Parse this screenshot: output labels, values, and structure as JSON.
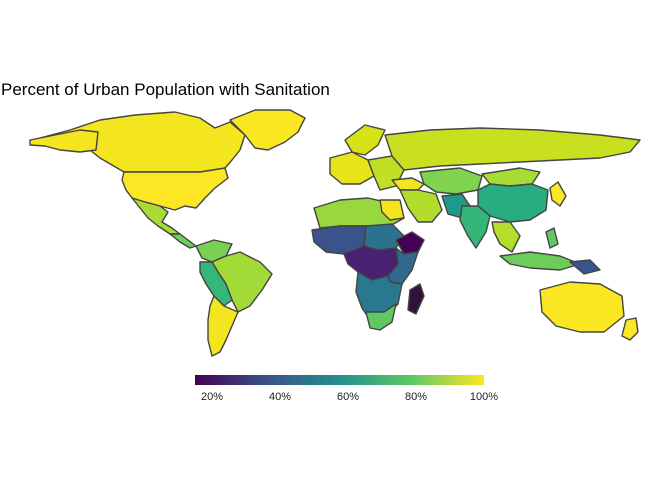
{
  "title": "Percent of Urban Population with Sanitation",
  "legend": {
    "type": "continuous colorbar",
    "palette": [
      "#440154",
      "#3b528b",
      "#21908c",
      "#5dc963",
      "#fde725"
    ],
    "min": 15,
    "max": 100,
    "ticks": [
      {
        "value": 20,
        "label": "20%"
      },
      {
        "value": 40,
        "label": "40%"
      },
      {
        "value": 60,
        "label": "60%"
      },
      {
        "value": 80,
        "label": "80%"
      },
      {
        "value": 100,
        "label": "100%"
      }
    ]
  }
}
